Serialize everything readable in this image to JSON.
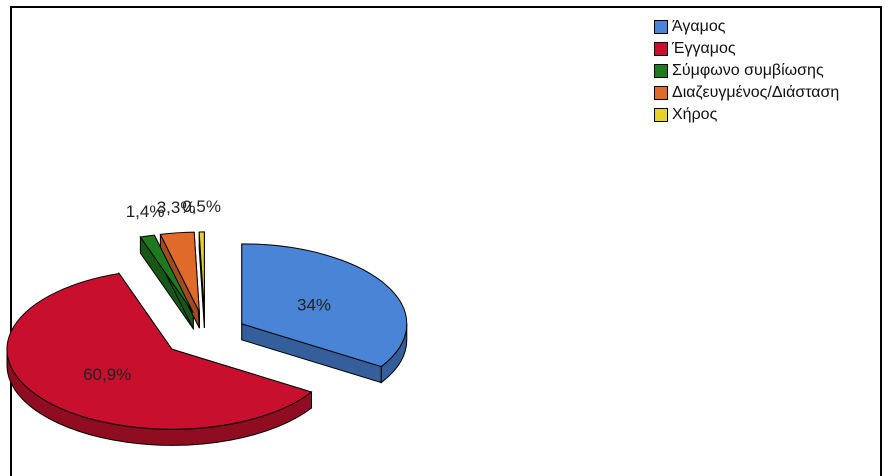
{
  "chart_data": {
    "type": "pie",
    "title": "",
    "slices": [
      {
        "label": "Άγαμος",
        "value": 34,
        "display": "34%",
        "color": "#4a84d6"
      },
      {
        "label": "Έγγαμος",
        "value": 60.9,
        "display": "60,9%",
        "color": "#c8102e"
      },
      {
        "label": "Σύμφωνο συμβίωσης",
        "value": 1.4,
        "display": "1,4%",
        "color": "#1e7a1e"
      },
      {
        "label": "Διαζευγμένος/Διάσταση",
        "value": 3.3,
        "display": "3,3%",
        "color": "#e06a2a"
      },
      {
        "label": "Χήρος",
        "value": 0.5,
        "display": "0,5%",
        "color": "#e6d22a"
      }
    ],
    "legend_position": "top-right",
    "exploded": true,
    "style": "3d"
  }
}
